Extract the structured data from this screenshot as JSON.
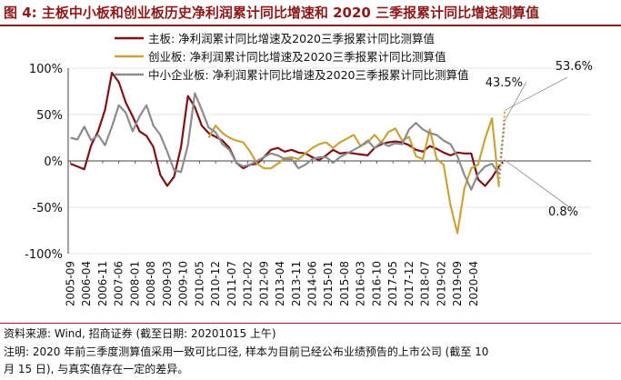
{
  "figure": {
    "title": "图 4: 主板中小板和创业板历史净利润累计同比增速和 2020 三季报累计同比增速测算值",
    "source": "资料来源: Wind, 招商证券 (截至日期: 20201015 上午)",
    "note_line1": "注明: 2020 年前三季度测算值采用一致可比口径, 样本为目前已经公布业绩预告的上市公司 (截至 10",
    "note_line2": "月 15 日), 与真实值存在一定的差异。"
  },
  "chart_data": {
    "type": "line",
    "title": "主板中小板和创业板历史净利润累计同比增速和2020三季报累计同比增速测算值",
    "xlabel": "",
    "ylabel": "",
    "ylim": [
      -100,
      100
    ],
    "yticks": [
      -100,
      -50,
      0,
      50,
      100
    ],
    "ytick_labels": [
      "-100%",
      "-50%",
      "0%",
      "50%",
      "100%"
    ],
    "x_start": "2005-09",
    "x_step_quarters": 1,
    "xtick_labels": [
      "2005-09",
      "2006-04",
      "2006-11",
      "2007-06",
      "2008-01",
      "2008-08",
      "2009-03",
      "2009-10",
      "2010-05",
      "2010-12",
      "2011-07",
      "2012-02",
      "2012-09",
      "2013-04",
      "2013-11",
      "2014-06",
      "2015-01",
      "2015-08",
      "2016-03",
      "2016-10",
      "2017-05",
      "2017-12",
      "2018-07",
      "2019-02",
      "2019-09",
      "2020-04"
    ],
    "legend_position": "top-center",
    "series": [
      {
        "name": "主板: 净利润累计同比增速及2020三季报累计同比测算值",
        "color": "#7b1318",
        "start_index": 0,
        "values": [
          -3,
          -6,
          -9,
          17,
          32,
          55,
          95,
          85,
          63,
          48,
          32,
          27,
          15,
          -15,
          -27,
          -17,
          15,
          70,
          58,
          38,
          30,
          26,
          22,
          14,
          -2,
          -8,
          -4,
          -3,
          4,
          12,
          14,
          10,
          12,
          9,
          8,
          4,
          1,
          6,
          12,
          8,
          9,
          8,
          7,
          6,
          14,
          18,
          20,
          21,
          20,
          17,
          12,
          10,
          16,
          13,
          9,
          6,
          9,
          8,
          8,
          -20,
          -27,
          -18,
          -6
        ],
        "projection": 0.8,
        "projection_label": "0.8%"
      },
      {
        "name": "创业板: 净利润累计同比增速及2020三季报累计同比测算值",
        "color": "#c8a43b",
        "start_index": 20,
        "values": [
          25,
          38,
          30,
          25,
          22,
          20,
          10,
          -3,
          -8,
          -8,
          -3,
          3,
          4,
          2,
          8,
          14,
          18,
          20,
          14,
          20,
          24,
          28,
          16,
          20,
          28,
          20,
          31,
          35,
          22,
          26,
          5,
          2,
          34,
          2,
          -4,
          -48,
          -78,
          -30,
          -8,
          -4,
          24,
          46,
          -28
        ],
        "projection": 53.6,
        "projection_label": "53.6%"
      },
      {
        "name": "中小企业板: 净利润累计同比增速及2020三季报累计同比测算值",
        "color": "#8c8c8c",
        "start_index": 0,
        "values": [
          25,
          23,
          37,
          22,
          28,
          17,
          37,
          60,
          52,
          32,
          48,
          60,
          38,
          28,
          10,
          -10,
          -12,
          17,
          73,
          55,
          36,
          31,
          18,
          12,
          -2,
          -6,
          -4,
          0,
          4,
          8,
          6,
          2,
          2,
          -8,
          -4,
          2,
          4,
          4,
          -2,
          4,
          8,
          12,
          16,
          22,
          14,
          20,
          16,
          19,
          18,
          34,
          41,
          34,
          30,
          28,
          22,
          18,
          5,
          -15,
          -31,
          -14,
          -6,
          -3,
          -14
        ],
        "projection": 43.5,
        "projection_label": "43.5%"
      }
    ]
  }
}
